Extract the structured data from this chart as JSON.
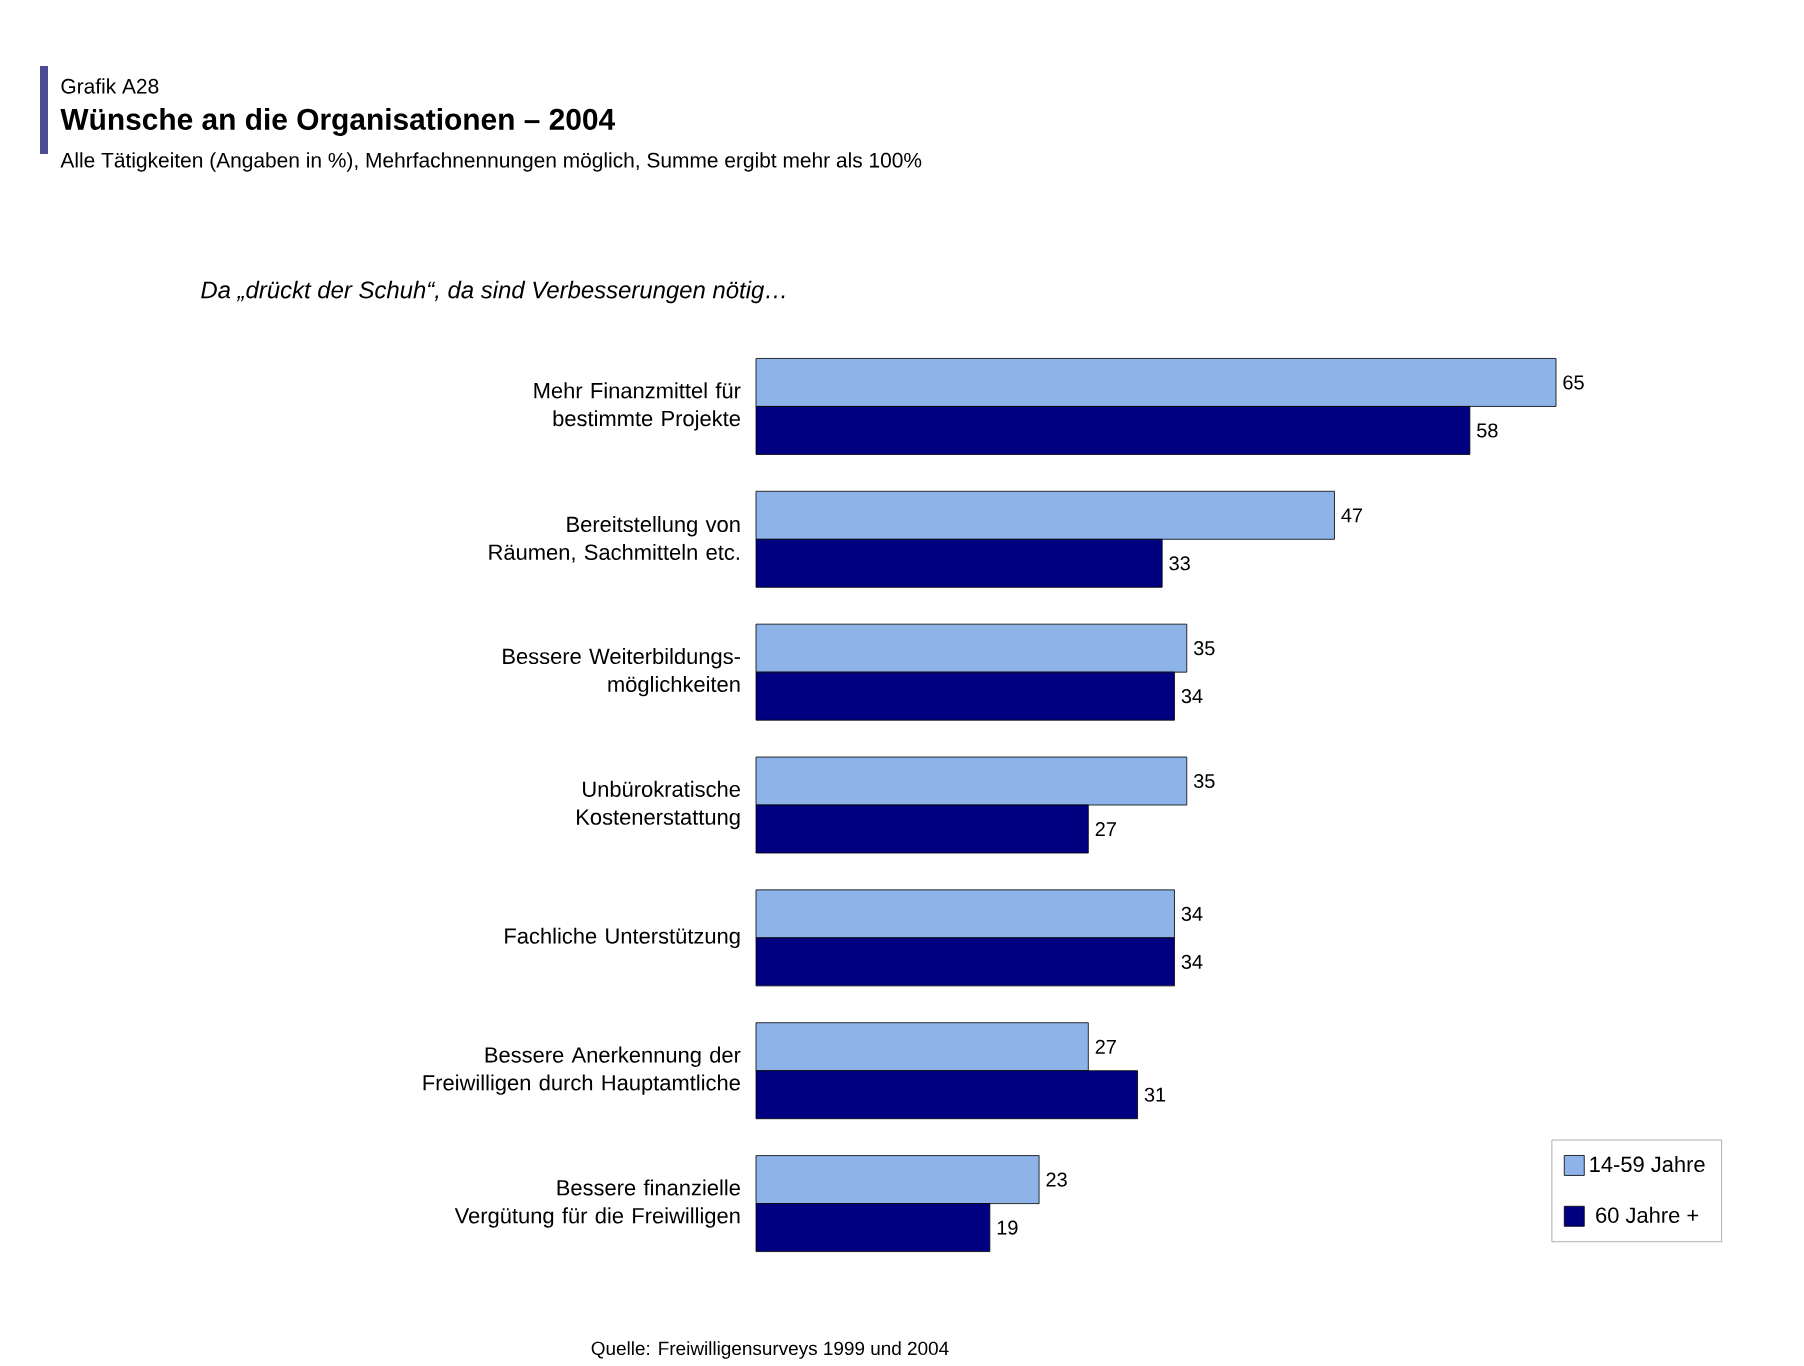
{
  "chart_data": {
    "type": "bar",
    "orientation": "horizontal",
    "title": "Wünsche an die Organisationen – 2004",
    "subtitle": "Alle Tätigkeiten (Angaben in %), Mehrfachnennungen möglich, Summe ergibt mehr als 100%",
    "annotations": [
      "Grafik A28",
      "Da „drückt der Schuh“, da sind Verbesserungen nötig…",
      "Quelle: Freiwilligensurveys 1999 und 2004"
    ],
    "categories": [
      "Mehr Finanzmittel für bestimmte Projekte",
      "Bereitstellung von Räumen, Sachmitteln etc.",
      "Bessere Weiterbildungs-möglichkeiten",
      "Unbürokratische Kostenerstattung",
      "Fachliche Unterstützung",
      "Bessere Anerkennung der Freiwilligen durch Hauptamtliche",
      "Bessere finanzielle Vergütung für die Freiwilligen"
    ],
    "series": [
      {
        "name": "14-59 Jahre",
        "color": "#8db3e8",
        "values": [
          65,
          47,
          35,
          35,
          34,
          27,
          23
        ]
      },
      {
        "name": "60 Jahre +",
        "color": "#000080",
        "values": [
          58,
          33,
          34,
          27,
          34,
          31,
          19
        ]
      }
    ],
    "data_labels": true,
    "legend": "bottom right"
  }
}
